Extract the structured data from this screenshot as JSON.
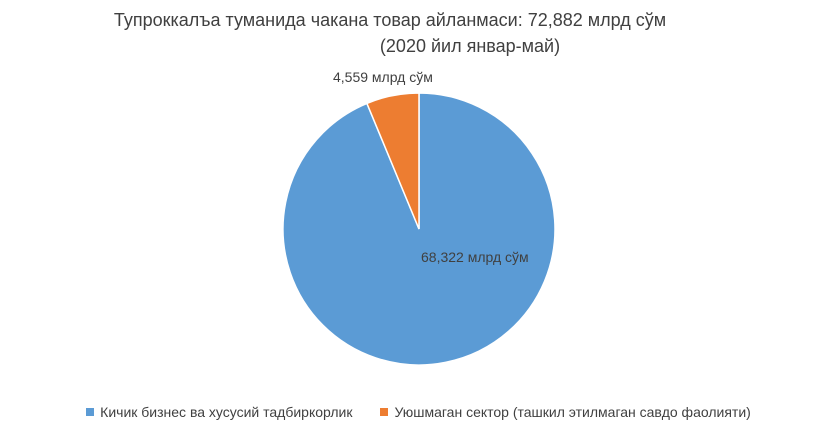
{
  "chart_data": {
    "type": "pie",
    "title": "Тупроккалъа туманида чакана товар айланмаси: 72,882 млрд сўм",
    "subtitle": "(2020 йил январ-май)",
    "slices": [
      {
        "name": "Кичик бизнес ва хусусий тадбиркорлик",
        "value": 68.322,
        "label": "68,322 млрд сўм",
        "color": "#5B9BD5"
      },
      {
        "name": "Уюшмаган сектор (ташкил этилмаган савдо фаолияти)",
        "value": 4.559,
        "label": "4,559 млрд сўм",
        "color": "#ED7D31"
      }
    ],
    "legend_position": "bottom"
  }
}
